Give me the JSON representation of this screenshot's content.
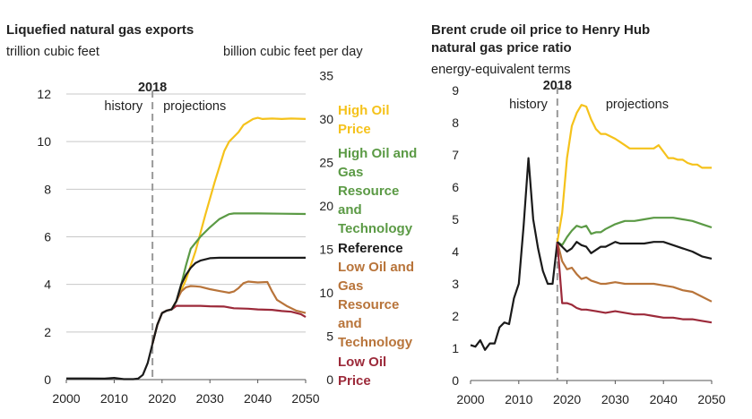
{
  "colors": {
    "high_oil": "#f5c21b",
    "high_og": "#5b9a45",
    "reference": "#1a1a1a",
    "low_og": "#b8743a",
    "low_oil": "#9c2a3a",
    "grid": "#c8c8c8",
    "divider": "#999999"
  },
  "chart_data": [
    {
      "type": "line",
      "title": "Liquefied natural gas exports",
      "left_axis_label": "trillion cubic feet",
      "right_axis_label": "billion cubic feet per day",
      "xlim": [
        2000,
        2050
      ],
      "ylim": [
        0,
        12
      ],
      "x_ticks": [
        "2000",
        "2010",
        "2020",
        "2030",
        "2040",
        "2050"
      ],
      "y_ticks": [
        "0",
        "2",
        "4",
        "6",
        "8",
        "10",
        "12"
      ],
      "right_ticks": [
        "0",
        "5",
        "10",
        "15",
        "20",
        "25",
        "30",
        "35"
      ],
      "divider_year": 2018,
      "divider_label": "2018",
      "history_label": "history",
      "projections_label": "projections",
      "legend": [
        {
          "key": "high_oil",
          "lines": [
            "High Oil",
            "Price"
          ]
        },
        {
          "key": "high_og",
          "lines": [
            "High Oil and",
            "Gas",
            "Resource",
            "and",
            "Technology"
          ]
        },
        {
          "key": "reference",
          "lines": [
            "Reference"
          ]
        },
        {
          "key": "low_og",
          "lines": [
            "Low Oil and",
            "Gas",
            "Resource",
            "and",
            "Technology"
          ]
        },
        {
          "key": "low_oil",
          "lines": [
            "Low Oil",
            "Price"
          ]
        }
      ],
      "history": {
        "x": [
          2000,
          2004,
          2008,
          2010,
          2012,
          2014,
          2015,
          2016,
          2017,
          2018
        ],
        "y": [
          0.05,
          0.05,
          0.04,
          0.07,
          0.02,
          0.02,
          0.04,
          0.2,
          0.7,
          1.5
        ]
      },
      "series": [
        {
          "key": "high_oil",
          "x": [
            2018,
            2019,
            2020,
            2021,
            2022,
            2023,
            2025,
            2027,
            2029,
            2031,
            2033,
            2034,
            2035,
            2036,
            2037,
            2039,
            2040,
            2041,
            2043,
            2045,
            2047,
            2050
          ],
          "y": [
            1.5,
            2.3,
            2.8,
            2.9,
            2.95,
            3.3,
            4.2,
            5.4,
            6.9,
            8.3,
            9.6,
            10.0,
            10.2,
            10.4,
            10.7,
            10.95,
            11.0,
            10.95,
            10.97,
            10.95,
            10.97,
            10.95
          ]
        },
        {
          "key": "high_og",
          "x": [
            2018,
            2019,
            2020,
            2021,
            2022,
            2023,
            2024,
            2025,
            2026,
            2028,
            2030,
            2032,
            2034,
            2035,
            2036,
            2040,
            2045,
            2050
          ],
          "y": [
            1.5,
            2.3,
            2.8,
            2.9,
            2.95,
            3.3,
            4.0,
            4.8,
            5.5,
            6.0,
            6.4,
            6.75,
            6.95,
            6.98,
            6.98,
            6.98,
            6.97,
            6.96
          ]
        },
        {
          "key": "reference",
          "x": [
            2018,
            2019,
            2020,
            2021,
            2022,
            2023,
            2024,
            2025,
            2026,
            2027,
            2028,
            2030,
            2032,
            2035,
            2040,
            2045,
            2050
          ],
          "y": [
            1.5,
            2.3,
            2.8,
            2.9,
            2.95,
            3.3,
            4.0,
            4.4,
            4.7,
            4.9,
            5.0,
            5.1,
            5.12,
            5.12,
            5.12,
            5.12,
            5.12
          ]
        },
        {
          "key": "low_og",
          "x": [
            2018,
            2019,
            2020,
            2021,
            2022,
            2023,
            2024,
            2025,
            2026,
            2027,
            2028,
            2030,
            2032,
            2034,
            2035,
            2036,
            2037,
            2038,
            2039,
            2040,
            2042,
            2043,
            2044,
            2046,
            2048,
            2050
          ],
          "y": [
            1.5,
            2.3,
            2.8,
            2.9,
            2.95,
            3.3,
            3.7,
            3.88,
            3.93,
            3.92,
            3.9,
            3.8,
            3.72,
            3.65,
            3.7,
            3.85,
            4.05,
            4.12,
            4.1,
            4.08,
            4.1,
            3.7,
            3.35,
            3.1,
            2.9,
            2.8
          ]
        },
        {
          "key": "low_oil",
          "x": [
            2018,
            2019,
            2020,
            2021,
            2022,
            2023,
            2025,
            2028,
            2030,
            2033,
            2035,
            2038,
            2040,
            2043,
            2045,
            2047,
            2049,
            2050
          ],
          "y": [
            1.5,
            2.3,
            2.8,
            2.9,
            2.95,
            3.1,
            3.1,
            3.1,
            3.08,
            3.07,
            3.0,
            2.98,
            2.95,
            2.93,
            2.88,
            2.85,
            2.75,
            2.63
          ]
        }
      ]
    },
    {
      "type": "line",
      "title": [
        "Brent crude oil price to Henry Hub",
        "natural gas price ratio"
      ],
      "subtitle": "energy-equivalent terms",
      "xlim": [
        2000,
        2050
      ],
      "ylim": [
        0,
        9
      ],
      "x_ticks": [
        "2000",
        "2010",
        "2020",
        "2030",
        "2040",
        "2050"
      ],
      "y_ticks": [
        "0",
        "1",
        "2",
        "3",
        "4",
        "5",
        "6",
        "7",
        "8",
        "9"
      ],
      "divider_year": 2018,
      "divider_label": "2018",
      "history_label": "history",
      "projections_label": "projections",
      "history": {
        "x": [
          2000,
          2001,
          2002,
          2003,
          2004,
          2005,
          2006,
          2007,
          2008,
          2009,
          2010,
          2011,
          2012,
          2013,
          2014,
          2015,
          2016,
          2017,
          2018
        ],
        "y": [
          1.1,
          1.05,
          1.25,
          0.95,
          1.15,
          1.15,
          1.65,
          1.8,
          1.75,
          2.55,
          3.0,
          4.8,
          6.9,
          5.0,
          4.1,
          3.4,
          3.0,
          3.0,
          4.3
        ]
      },
      "series": [
        {
          "key": "high_oil",
          "x": [
            2018,
            2019,
            2020,
            2021,
            2022,
            2023,
            2024,
            2025,
            2026,
            2027,
            2028,
            2030,
            2031,
            2032,
            2033,
            2034,
            2035,
            2036,
            2037,
            2038,
            2039,
            2040,
            2041,
            2042,
            2043,
            2044,
            2045,
            2046,
            2047,
            2048,
            2049,
            2050
          ],
          "y": [
            4.3,
            5.2,
            6.9,
            7.9,
            8.3,
            8.55,
            8.5,
            8.1,
            7.8,
            7.65,
            7.65,
            7.5,
            7.4,
            7.3,
            7.2,
            7.2,
            7.2,
            7.2,
            7.2,
            7.2,
            7.3,
            7.1,
            6.9,
            6.9,
            6.85,
            6.85,
            6.75,
            6.7,
            6.7,
            6.6,
            6.6,
            6.6
          ]
        },
        {
          "key": "high_og",
          "x": [
            2018,
            2019,
            2020,
            2021,
            2022,
            2023,
            2024,
            2025,
            2026,
            2027,
            2028,
            2030,
            2031,
            2032,
            2034,
            2036,
            2038,
            2040,
            2042,
            2044,
            2046,
            2048,
            2050
          ],
          "y": [
            4.3,
            4.2,
            4.45,
            4.65,
            4.8,
            4.75,
            4.8,
            4.55,
            4.6,
            4.6,
            4.7,
            4.85,
            4.9,
            4.95,
            4.95,
            5.0,
            5.05,
            5.05,
            5.05,
            5.0,
            4.95,
            4.85,
            4.75
          ]
        },
        {
          "key": "reference",
          "x": [
            2018,
            2019,
            2020,
            2021,
            2022,
            2023,
            2024,
            2025,
            2026,
            2027,
            2028,
            2030,
            2031,
            2032,
            2034,
            2036,
            2038,
            2040,
            2042,
            2044,
            2046,
            2048,
            2050
          ],
          "y": [
            4.3,
            4.15,
            4.0,
            4.1,
            4.3,
            4.2,
            4.15,
            3.95,
            4.05,
            4.15,
            4.15,
            4.3,
            4.25,
            4.25,
            4.25,
            4.25,
            4.3,
            4.3,
            4.2,
            4.1,
            4.0,
            3.85,
            3.78
          ]
        },
        {
          "key": "low_og",
          "x": [
            2018,
            2019,
            2020,
            2021,
            2022,
            2023,
            2024,
            2025,
            2026,
            2027,
            2028,
            2030,
            2032,
            2034,
            2036,
            2038,
            2040,
            2042,
            2044,
            2046,
            2048,
            2050
          ],
          "y": [
            4.3,
            3.7,
            3.45,
            3.5,
            3.3,
            3.15,
            3.2,
            3.1,
            3.05,
            3.0,
            3.0,
            3.05,
            3.0,
            3.0,
            3.0,
            3.0,
            2.95,
            2.9,
            2.8,
            2.75,
            2.6,
            2.45
          ]
        },
        {
          "key": "low_oil",
          "x": [
            2018,
            2019,
            2020,
            2021,
            2022,
            2023,
            2024,
            2026,
            2028,
            2030,
            2032,
            2034,
            2036,
            2038,
            2040,
            2042,
            2044,
            2046,
            2048,
            2050
          ],
          "y": [
            4.3,
            2.4,
            2.4,
            2.35,
            2.25,
            2.2,
            2.2,
            2.15,
            2.1,
            2.15,
            2.1,
            2.05,
            2.05,
            2.0,
            1.95,
            1.95,
            1.9,
            1.9,
            1.85,
            1.8
          ]
        }
      ]
    }
  ]
}
